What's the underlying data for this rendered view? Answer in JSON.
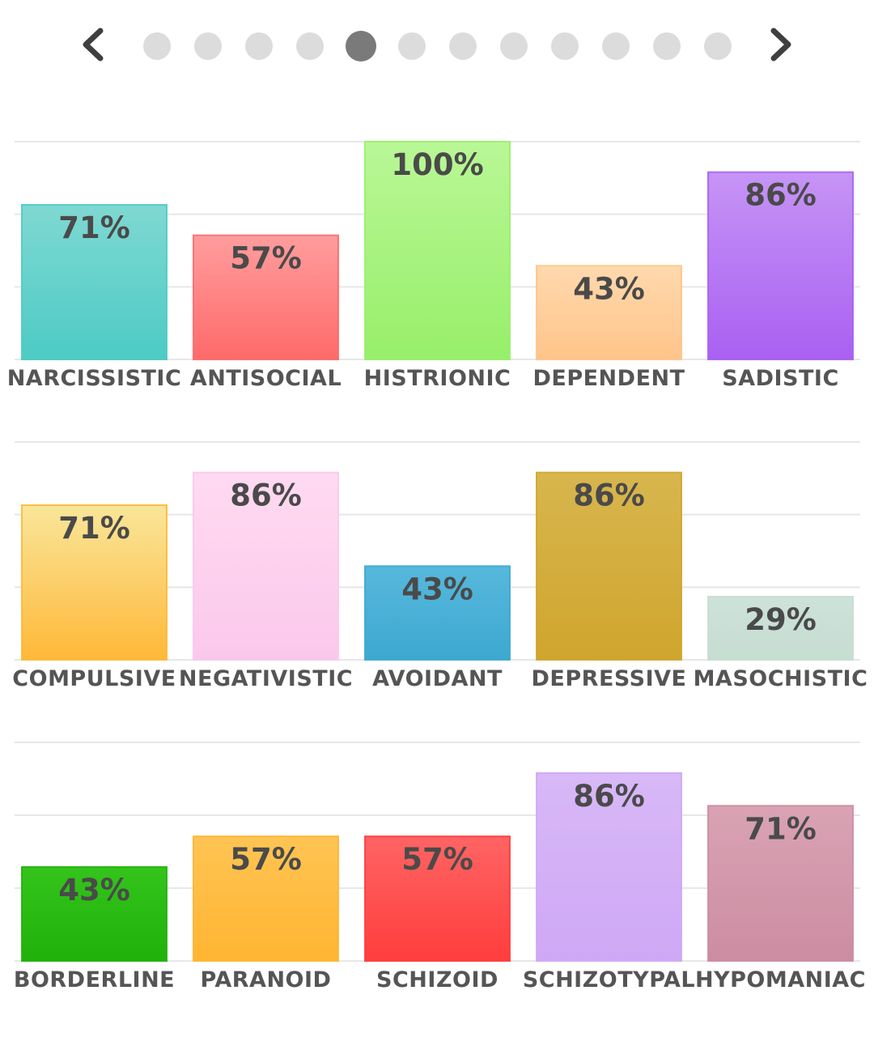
{
  "pager": {
    "prev_icon": "chevron-left-icon",
    "next_icon": "chevron-right-icon",
    "dot_count": 12,
    "active_index": 4,
    "active_color": "#7a7a7a",
    "inactive_color": "#dcdcdc"
  },
  "chart_data": [
    {
      "type": "bar",
      "categories": [
        "NARCISSISTIC",
        "ANTISOCIAL",
        "HISTRIONIC",
        "DEPENDENT",
        "SADISTIC"
      ],
      "values": [
        71,
        57,
        100,
        43,
        86
      ],
      "value_labels": [
        "71%",
        "57%",
        "100%",
        "43%",
        "86%"
      ],
      "colors": [
        [
          "#7fd8d2",
          "#4ccbc4"
        ],
        [
          "#ff9d9d",
          "#ff6a6a"
        ],
        [
          "#b9f796",
          "#97ef6a"
        ],
        [
          "#ffd9ad",
          "#ffc48a"
        ],
        [
          "#c694f5",
          "#a960f2"
        ]
      ],
      "ylim": [
        0,
        100
      ],
      "grid": true
    },
    {
      "type": "bar",
      "categories": [
        "COMPULSIVE",
        "NEGATIVISTIC",
        "AVOIDANT",
        "DEPRESSIVE",
        "MASOCHISTIC"
      ],
      "values": [
        71,
        86,
        43,
        86,
        29
      ],
      "value_labels": [
        "71%",
        "86%",
        "43%",
        "86%",
        "29%"
      ],
      "colors": [
        [
          "#f9e69a",
          "#ffb838"
        ],
        [
          "#ffdaf1",
          "#fbc8ec"
        ],
        [
          "#57b8dc",
          "#3da8d0"
        ],
        [
          "#d8b64e",
          "#cfa52d"
        ],
        [
          "#cde2d9",
          "#c6ddd2"
        ]
      ],
      "ylim": [
        0,
        100
      ],
      "grid": true
    },
    {
      "type": "bar",
      "categories": [
        "BORDERLINE",
        "PARANOID",
        "SCHIZOID",
        "SCHIZOTYPAL",
        "HYPOMANIAC"
      ],
      "values": [
        43,
        57,
        57,
        86,
        71
      ],
      "value_labels": [
        "43%",
        "57%",
        "57%",
        "86%",
        "71%"
      ],
      "colors": [
        [
          "#34c41c",
          "#20b20a"
        ],
        [
          "#ffc453",
          "#ffb532"
        ],
        [
          "#ff6464",
          "#ff3d3d"
        ],
        [
          "#d8b8f7",
          "#cfa8f5"
        ],
        [
          "#d9a3b4",
          "#cc8ca1"
        ]
      ],
      "ylim": [
        0,
        100
      ],
      "grid": true
    }
  ]
}
